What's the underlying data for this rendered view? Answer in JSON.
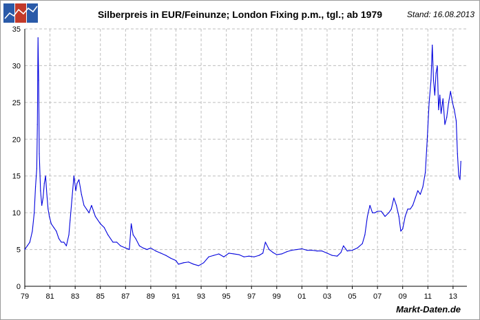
{
  "header": {
    "title": "Silberpreis in EUR/Feinunze; London Fixing p.m., tgl.; ab 1979",
    "date": "Stand: 16.08.2013",
    "brand": "Markt-Daten.de"
  },
  "colors": {
    "series": "#0000dd",
    "grid": "#bdbdbd",
    "logo_blue": "#2a5aa8",
    "logo_red": "#c23a2a"
  },
  "chart_data": {
    "type": "line",
    "title": "Silberpreis in EUR/Feinunze; London Fixing p.m., tgl.; ab 1979",
    "xlabel": "",
    "ylabel": "",
    "xlim": [
      1979,
      2014.1
    ],
    "ylim": [
      0,
      35
    ],
    "yticks": [
      0,
      5,
      10,
      15,
      20,
      25,
      30,
      35
    ],
    "xticks": [
      {
        "value": 1979,
        "label": "79"
      },
      {
        "value": 1981,
        "label": "81"
      },
      {
        "value": 1983,
        "label": "83"
      },
      {
        "value": 1985,
        "label": "85"
      },
      {
        "value": 1987,
        "label": "87"
      },
      {
        "value": 1989,
        "label": "89"
      },
      {
        "value": 1991,
        "label": "91"
      },
      {
        "value": 1993,
        "label": "93"
      },
      {
        "value": 1995,
        "label": "95"
      },
      {
        "value": 1997,
        "label": "97"
      },
      {
        "value": 1999,
        "label": "99"
      },
      {
        "value": 2001,
        "label": "01"
      },
      {
        "value": 2003,
        "label": "03"
      },
      {
        "value": 2005,
        "label": "05"
      },
      {
        "value": 2007,
        "label": "07"
      },
      {
        "value": 2009,
        "label": "09"
      },
      {
        "value": 2011,
        "label": "11"
      },
      {
        "value": 2013,
        "label": "13"
      }
    ],
    "grid": true,
    "series": [
      {
        "name": "Silberpreis EUR/Feinunze",
        "x": [
          1979.0,
          1979.2,
          1979.4,
          1979.6,
          1979.75,
          1979.85,
          1979.95,
          1980.0,
          1980.05,
          1980.1,
          1980.15,
          1980.25,
          1980.35,
          1980.45,
          1980.55,
          1980.65,
          1980.75,
          1980.85,
          1980.95,
          1981.1,
          1981.3,
          1981.5,
          1981.7,
          1981.9,
          1982.1,
          1982.3,
          1982.5,
          1982.6,
          1982.75,
          1982.9,
          1983.05,
          1983.15,
          1983.3,
          1983.5,
          1983.7,
          1983.9,
          1984.1,
          1984.3,
          1984.6,
          1985.0,
          1985.3,
          1985.6,
          1986.0,
          1986.3,
          1986.6,
          1987.0,
          1987.3,
          1987.45,
          1987.6,
          1987.8,
          1988.1,
          1988.4,
          1988.7,
          1989.0,
          1989.4,
          1989.8,
          1990.2,
          1990.6,
          1991.0,
          1991.2,
          1991.6,
          1992.0,
          1992.4,
          1992.8,
          1993.2,
          1993.6,
          1994.0,
          1994.4,
          1994.8,
          1995.2,
          1995.6,
          1996.0,
          1996.4,
          1996.8,
          1997.2,
          1997.6,
          1997.9,
          1998.1,
          1998.4,
          1998.7,
          1999.0,
          1999.4,
          1999.8,
          2000.2,
          2000.6,
          2001.0,
          2001.4,
          2001.8,
          2002.2,
          2002.6,
          2003.0,
          2003.4,
          2003.8,
          2004.1,
          2004.3,
          2004.6,
          2005.0,
          2005.4,
          2005.8,
          2006.0,
          2006.2,
          2006.4,
          2006.6,
          2006.8,
          2007.0,
          2007.3,
          2007.6,
          2007.9,
          2008.1,
          2008.3,
          2008.5,
          2008.7,
          2008.85,
          2009.0,
          2009.2,
          2009.4,
          2009.6,
          2009.8,
          2010.0,
          2010.2,
          2010.4,
          2010.6,
          2010.8,
          2010.95,
          2011.1,
          2011.25,
          2011.35,
          2011.45,
          2011.55,
          2011.65,
          2011.75,
          2011.85,
          2011.95,
          2012.05,
          2012.2,
          2012.35,
          2012.5,
          2012.65,
          2012.8,
          2012.95,
          2013.1,
          2013.25,
          2013.35,
          2013.45,
          2013.55,
          2013.62
        ],
        "values": [
          5.0,
          5.5,
          6.0,
          7.5,
          10.0,
          13.5,
          16.0,
          22.0,
          33.8,
          28.0,
          18.0,
          13.0,
          11.0,
          12.0,
          14.0,
          15.0,
          12.5,
          10.5,
          9.5,
          8.5,
          8.0,
          7.5,
          6.5,
          6.0,
          6.0,
          5.5,
          7.0,
          9.0,
          12.0,
          15.0,
          13.0,
          14.0,
          14.5,
          12.5,
          11.0,
          10.5,
          10.0,
          11.0,
          9.5,
          8.5,
          8.0,
          7.0,
          6.0,
          6.0,
          5.5,
          5.2,
          5.0,
          8.5,
          7.0,
          6.5,
          5.5,
          5.2,
          5.0,
          5.2,
          4.8,
          4.5,
          4.2,
          3.8,
          3.5,
          3.0,
          3.2,
          3.3,
          3.0,
          2.8,
          3.2,
          4.0,
          4.2,
          4.4,
          4.0,
          4.5,
          4.4,
          4.3,
          4.0,
          4.1,
          4.0,
          4.2,
          4.5,
          6.0,
          5.0,
          4.6,
          4.3,
          4.4,
          4.7,
          4.9,
          5.0,
          5.1,
          4.9,
          4.9,
          4.8,
          4.8,
          4.5,
          4.2,
          4.1,
          4.6,
          5.5,
          4.8,
          4.9,
          5.2,
          5.8,
          7.0,
          9.5,
          11.0,
          10.0,
          10.0,
          10.2,
          10.2,
          9.5,
          10.0,
          10.5,
          12.0,
          11.0,
          9.5,
          7.5,
          7.8,
          9.5,
          10.5,
          10.5,
          11.0,
          12.0,
          13.0,
          12.5,
          13.5,
          15.5,
          20.0,
          25.0,
          28.0,
          32.8,
          28.0,
          26.0,
          29.0,
          30.0,
          24.0,
          26.0,
          23.5,
          25.5,
          22.0,
          23.0,
          25.0,
          26.5,
          25.0,
          24.0,
          22.5,
          18.0,
          15.0,
          14.5,
          17.0
        ]
      }
    ]
  }
}
